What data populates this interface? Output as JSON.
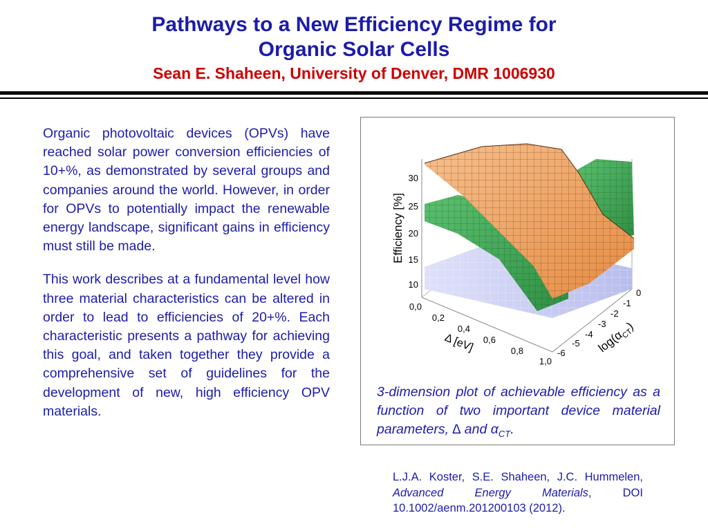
{
  "header": {
    "title_line1": "Pathways to a New Efficiency Regime for",
    "title_line2": "Organic Solar Cells",
    "subtitle": "Sean E. Shaheen, University of Denver,  DMR 1006930"
  },
  "body": {
    "paragraph1": "Organic photovoltaic devices (OPVs) have reached solar power conversion efficiencies of 10+%, as demonstrated by several groups and companies around the world.  However, in order for OPVs to potentially impact the renewable energy landscape, significant gains in efficiency must still be made.",
    "paragraph2": "This work describes at a fundamental level how three material characteristics can be altered in order to lead to efficiencies of 20+%.  Each characteristic presents a pathway for achieving this goal, and taken together they provide a comprehensive set of guidelines for the development of new, high efficiency OPV materials."
  },
  "figure": {
    "z_label": "Efficiency [%]",
    "z_ticks": [
      "30",
      "25",
      "20",
      "15",
      "10"
    ],
    "x_label": "Δ [eV]",
    "x_ticks": [
      "0,0",
      "0,2",
      "0,4",
      "0,6",
      "0,8",
      "1,0"
    ],
    "y_label": "log(α",
    "y_label_sub": "CT",
    "y_label_close": ")",
    "y_ticks": [
      "0",
      "-1",
      "-2",
      "-3",
      "-4",
      "-5",
      "-6"
    ],
    "surface_colors": {
      "orange": "#f0a060",
      "green": "#3aa44e",
      "blue": "#c4c8f2"
    }
  },
  "caption": {
    "text": "3-dimension plot of achievable efficiency as a function of two important device material parameters, ∆ and α",
    "sub": "CT",
    "end": "."
  },
  "citation": {
    "authors": "L.J.A. Koster, S.E. Shaheen, J.C. Hummelen, ",
    "journal": "Advanced Energy Materials",
    "rest": ", DOI 10.1002/aenm.201200103 (2012)."
  }
}
